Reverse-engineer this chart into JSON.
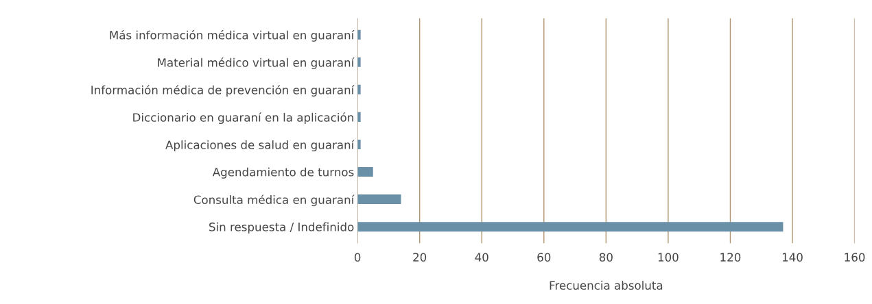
{
  "chart_data": {
    "type": "bar",
    "orientation": "horizontal",
    "categories": [
      "Más información médica virtual en guaraní",
      "Material médico virtual en guaraní",
      "Información médica de prevención en guaraní",
      "Diccionario en guaraní en la aplicación",
      "Aplicaciones de salud en guaraní",
      "Agendamiento de turnos",
      "Consulta médica en guaraní",
      "Sin respuesta / Indefinido"
    ],
    "values": [
      1,
      1,
      1,
      1,
      1,
      5,
      14,
      137
    ],
    "color": "#6a90a8",
    "xlabel": "Frecuencia absoluta",
    "xlim": [
      0,
      160
    ],
    "xticks": [
      0,
      20,
      40,
      60,
      80,
      100,
      120,
      140,
      160
    ],
    "grid": "x"
  }
}
